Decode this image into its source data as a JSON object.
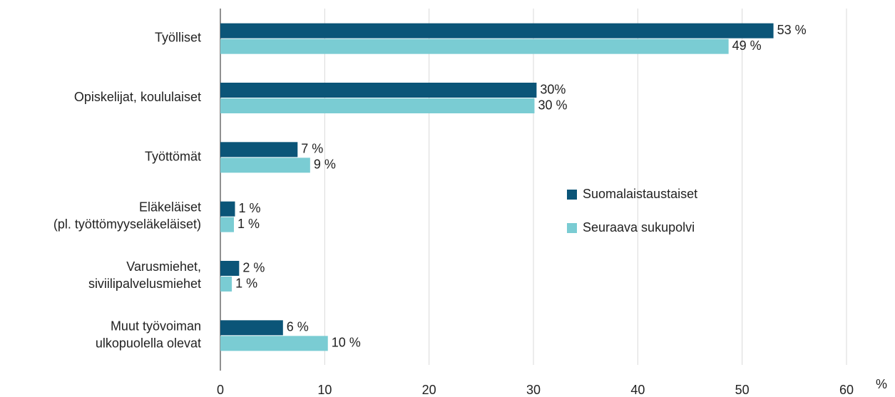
{
  "chart_data": {
    "type": "barh",
    "categories": [
      "Työlliset",
      "Opiskelijat, koululaiset",
      "Työttömät",
      "Eläkeläiset\n(pl. työttömyyseläkeläiset)",
      "Varusmiehet,\nsiviilipalvelusmiehet",
      "Muut työvoiman\nulkopuolella olevat"
    ],
    "series": [
      {
        "name": "Suomalaistaustaiset",
        "color": "#0b5578",
        "values": [
          53,
          30.3,
          7.4,
          1.4,
          1.8,
          6.0
        ],
        "value_labels": [
          "53 %",
          "30%",
          "7 %",
          "1 %",
          "2 %",
          "6 %"
        ]
      },
      {
        "name": "Seuraava sukupolvi",
        "color": "#7accd3",
        "values": [
          48.7,
          30.1,
          8.6,
          1.3,
          1.1,
          10.3
        ],
        "value_labels": [
          "49 %",
          "30 %",
          "9 %",
          "1 %",
          "1 %",
          "10 %"
        ]
      }
    ],
    "xlim": [
      0,
      60
    ],
    "xticks": [
      0,
      10,
      20,
      30,
      40,
      50,
      60
    ],
    "xlabel": "%",
    "grid": true
  }
}
